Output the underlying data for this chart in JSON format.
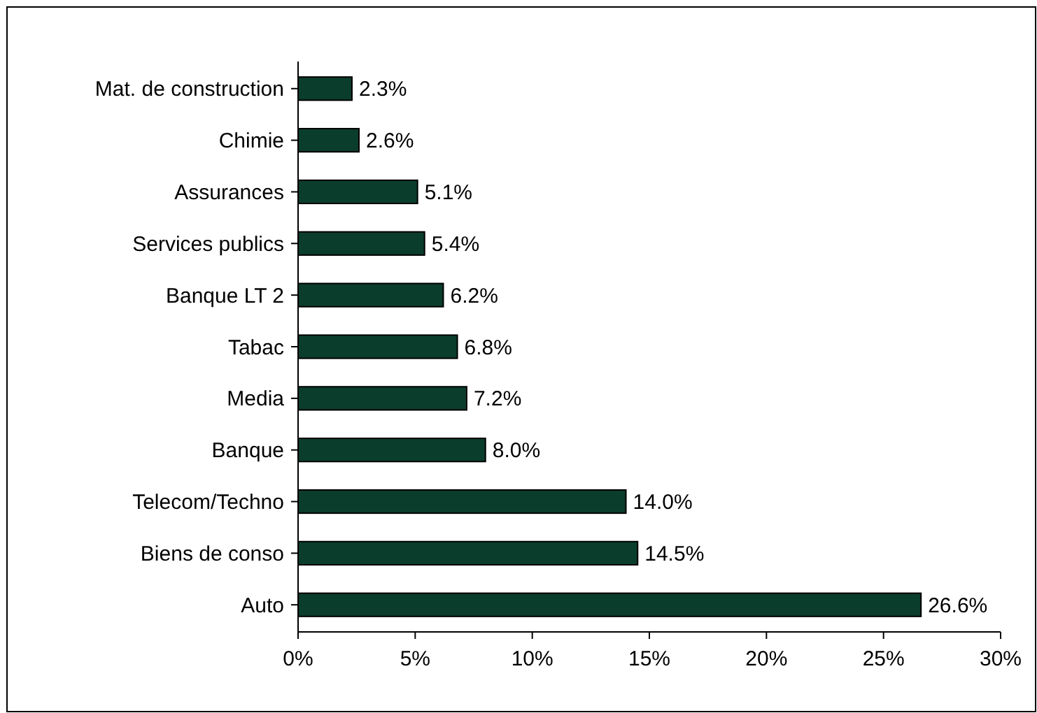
{
  "chart_data": {
    "type": "bar",
    "orientation": "horizontal",
    "categories": [
      "Mat. de construction",
      "Chimie",
      "Assurances",
      "Services publics",
      "Banque LT 2",
      "Tabac",
      "Media",
      "Banque",
      "Telecom/Techno",
      "Biens de conso",
      "Auto"
    ],
    "values": [
      2.3,
      2.6,
      5.1,
      5.4,
      6.2,
      6.8,
      7.2,
      8.0,
      14.0,
      14.5,
      26.6
    ],
    "value_labels": [
      "2.3%",
      "2.6%",
      "5.1%",
      "5.4%",
      "6.2%",
      "6.8%",
      "7.2%",
      "8.0%",
      "14.0%",
      "14.5%",
      "26.6%"
    ],
    "color": "#0b3d2c",
    "xlim": [
      0,
      30
    ],
    "xticks": [
      {
        "value": 0,
        "label": "0%"
      },
      {
        "value": 5,
        "label": "5%"
      },
      {
        "value": 10,
        "label": "10%"
      },
      {
        "value": 15,
        "label": "15%"
      },
      {
        "value": 20,
        "label": "20%"
      },
      {
        "value": 25,
        "label": "25%"
      },
      {
        "value": 30,
        "label": "30%"
      }
    ],
    "grid": false
  }
}
